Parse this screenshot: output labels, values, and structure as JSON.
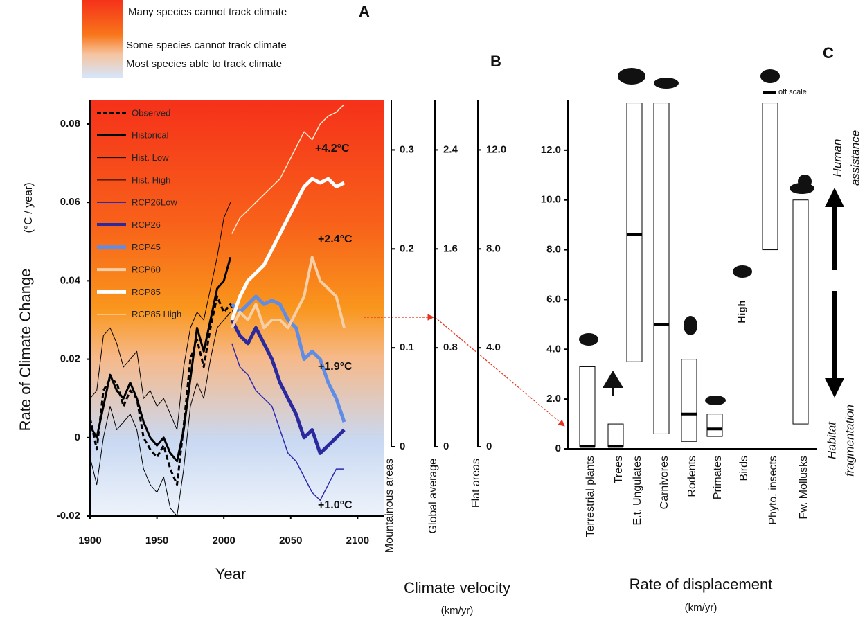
{
  "chart_data": [
    {
      "type": "line",
      "panel": "A",
      "y_label": "Rate of Climate Change",
      "y_unit": "(°C / year)",
      "x_label": "Year",
      "zones": [
        "Many species cannot track climate",
        "Some species cannot track climate",
        "Most species able to track climate"
      ],
      "xlim": [
        1900,
        2120
      ],
      "ylim": [
        -0.02,
        0.086
      ],
      "xticks": [
        1900,
        1950,
        2000,
        2050,
        2100
      ],
      "yticks": [
        -0.02,
        0,
        0.02,
        0.04,
        0.06,
        0.08
      ],
      "series": [
        {
          "name": "Observed",
          "color": "#000000",
          "width": 3,
          "dash": true,
          "x": [
            1900,
            1905,
            1910,
            1915,
            1920,
            1925,
            1930,
            1935,
            1940,
            1945,
            1950,
            1955,
            1960,
            1965,
            1970,
            1975,
            1980,
            1985,
            1990,
            1995,
            2000,
            2005,
            2010
          ],
          "values": [
            0.005,
            -0.003,
            0.012,
            0.015,
            0.014,
            0.008,
            0.012,
            0.01,
            0.0,
            -0.003,
            -0.005,
            -0.002,
            -0.008,
            -0.012,
            0.003,
            0.02,
            0.025,
            0.018,
            0.028,
            0.036,
            0.032,
            0.034,
            0.03
          ]
        },
        {
          "name": "Historical",
          "color": "#000000",
          "width": 3,
          "dash": false,
          "x": [
            1900,
            1905,
            1910,
            1915,
            1920,
            1925,
            1930,
            1935,
            1940,
            1945,
            1950,
            1955,
            1960,
            1965,
            1970,
            1975,
            1980,
            1985,
            1990,
            1995,
            2000,
            2005
          ],
          "values": [
            0.003,
            0.0,
            0.008,
            0.016,
            0.012,
            0.01,
            0.014,
            0.01,
            0.004,
            0.0,
            -0.002,
            0.0,
            -0.004,
            -0.006,
            0.002,
            0.015,
            0.028,
            0.022,
            0.03,
            0.038,
            0.04,
            0.046
          ]
        },
        {
          "name": "Hist. Low",
          "color": "#000000",
          "width": 1,
          "dash": false,
          "x": [
            1900,
            1905,
            1910,
            1915,
            1920,
            1925,
            1930,
            1935,
            1940,
            1945,
            1950,
            1955,
            1960,
            1965,
            1970,
            1975,
            1980,
            1985,
            1990,
            1995,
            2000,
            2005
          ],
          "values": [
            -0.005,
            -0.012,
            0.0,
            0.008,
            0.002,
            0.004,
            0.006,
            0.002,
            -0.008,
            -0.012,
            -0.014,
            -0.01,
            -0.018,
            -0.02,
            -0.008,
            0.008,
            0.014,
            0.01,
            0.02,
            0.028,
            0.03,
            0.032
          ]
        },
        {
          "name": "Hist. High",
          "color": "#000000",
          "width": 1,
          "dash": false,
          "x": [
            1900,
            1905,
            1910,
            1915,
            1920,
            1925,
            1930,
            1935,
            1940,
            1945,
            1950,
            1955,
            1960,
            1965,
            1970,
            1975,
            1980,
            1985,
            1990,
            1995,
            2000,
            2005
          ],
          "values": [
            0.01,
            0.012,
            0.026,
            0.028,
            0.024,
            0.018,
            0.02,
            0.022,
            0.01,
            0.012,
            0.008,
            0.01,
            0.006,
            0.002,
            0.018,
            0.028,
            0.032,
            0.03,
            0.038,
            0.046,
            0.056,
            0.06
          ]
        },
        {
          "name": "RCP26Low",
          "color": "#2b2bb0",
          "width": 1.5,
          "dash": false,
          "x": [
            2006,
            2012,
            2018,
            2024,
            2030,
            2036,
            2042,
            2048,
            2054,
            2060,
            2066,
            2072,
            2078,
            2084,
            2090
          ],
          "values": [
            0.024,
            0.018,
            0.016,
            0.012,
            0.01,
            0.008,
            0.002,
            -0.004,
            -0.006,
            -0.01,
            -0.014,
            -0.016,
            -0.012,
            -0.008,
            -0.008
          ]
        },
        {
          "name": "RCP26",
          "color": "#2a2a9e",
          "width": 5,
          "dash": false,
          "x": [
            2006,
            2012,
            2018,
            2024,
            2030,
            2036,
            2042,
            2048,
            2054,
            2060,
            2066,
            2072,
            2078,
            2084,
            2090
          ],
          "values": [
            0.03,
            0.026,
            0.024,
            0.028,
            0.024,
            0.02,
            0.014,
            0.01,
            0.006,
            0.0,
            0.002,
            -0.004,
            -0.002,
            0.0,
            0.002
          ]
        },
        {
          "name": "RCP45",
          "color": "#5f8de6",
          "width": 5,
          "dash": false,
          "x": [
            2006,
            2012,
            2018,
            2024,
            2030,
            2036,
            2042,
            2048,
            2054,
            2060,
            2066,
            2072,
            2078,
            2084,
            2090
          ],
          "values": [
            0.034,
            0.032,
            0.034,
            0.036,
            0.034,
            0.035,
            0.034,
            0.03,
            0.028,
            0.02,
            0.022,
            0.02,
            0.014,
            0.01,
            0.004
          ]
        },
        {
          "name": "RCP60",
          "color": "#f7cfa6",
          "width": 4,
          "dash": false,
          "x": [
            2006,
            2012,
            2018,
            2024,
            2030,
            2036,
            2042,
            2048,
            2054,
            2060,
            2066,
            2072,
            2078,
            2084,
            2090
          ],
          "values": [
            0.028,
            0.032,
            0.03,
            0.034,
            0.028,
            0.03,
            0.03,
            0.028,
            0.032,
            0.036,
            0.046,
            0.04,
            0.038,
            0.036,
            0.028
          ]
        },
        {
          "name": "RCP85",
          "color": "#ffffff",
          "width": 5,
          "dash": false,
          "x": [
            2006,
            2012,
            2018,
            2024,
            2030,
            2036,
            2042,
            2048,
            2054,
            2060,
            2066,
            2072,
            2078,
            2084,
            2090
          ],
          "values": [
            0.03,
            0.036,
            0.04,
            0.042,
            0.044,
            0.048,
            0.052,
            0.056,
            0.06,
            0.064,
            0.066,
            0.065,
            0.066,
            0.064,
            0.065
          ]
        },
        {
          "name": "RCP85 High",
          "color": "#ffe9cc",
          "width": 1.5,
          "dash": false,
          "x": [
            2006,
            2012,
            2018,
            2024,
            2030,
            2036,
            2042,
            2048,
            2054,
            2060,
            2066,
            2072,
            2078,
            2084,
            2090
          ],
          "values": [
            0.052,
            0.056,
            0.058,
            0.06,
            0.062,
            0.064,
            0.066,
            0.07,
            0.074,
            0.078,
            0.076,
            0.08,
            0.082,
            0.083,
            0.085
          ]
        }
      ],
      "annotations": [
        {
          "text": "+4.2°C",
          "color": "#ffffff"
        },
        {
          "text": "+2.4°C",
          "color": "#f7cfa6"
        },
        {
          "text": "+1.9°C",
          "color": "#5f8de6"
        },
        {
          "text": "+1.0°C",
          "color": "#2a2a9e"
        }
      ]
    },
    {
      "type": "axes",
      "panel": "B",
      "title": "Climate velocity",
      "unit": "(km/yr)",
      "axes": [
        {
          "label": "Mountainous areas",
          "ylim": [
            0,
            0.35
          ],
          "yticks": [
            0,
            0.1,
            0.2,
            0.3
          ]
        },
        {
          "label": "Global average",
          "ylim": [
            0,
            2.8
          ],
          "yticks": [
            0,
            0.8,
            1.6,
            2.4
          ]
        },
        {
          "label": "Flat areas",
          "ylim": [
            0,
            14
          ],
          "yticks": [
            0,
            {
              "value": 4,
              "label": "4.0"
            },
            {
              "value": 8,
              "label": "8.0"
            },
            {
              "value": 12,
              "label": "12.0"
            }
          ]
        }
      ]
    },
    {
      "type": "range",
      "panel": "C",
      "x_label": "Rate of displacement",
      "unit": "(km/yr)",
      "ylim": [
        0,
        14
      ],
      "yticks": [
        0,
        {
          "value": 2,
          "label": "2.0"
        },
        {
          "value": 4,
          "label": "4.0"
        },
        {
          "value": 6,
          "label": "6.0"
        },
        {
          "value": 8,
          "label": "8.0"
        },
        {
          "value": 10,
          "label": "10.0"
        },
        {
          "value": 12,
          "label": "12.0"
        }
      ],
      "categories": [
        "Terrestrial plants",
        "Trees",
        "E.t. Ungulates",
        "Carnivores",
        "Rodents",
        "Primates",
        "Birds",
        "Phyto. insects",
        "Fw. Mollusks"
      ],
      "low": [
        0.1,
        0.1,
        3.5,
        0.6,
        0.3,
        0.5,
        null,
        8.0,
        1.0
      ],
      "high": [
        3.3,
        1.0,
        13.9,
        13.9,
        3.6,
        1.4,
        null,
        13.9,
        10.0
      ],
      "median": [
        0.1,
        0.1,
        8.6,
        5.0,
        1.4,
        0.8,
        null,
        null,
        null
      ],
      "notes": [
        null,
        null,
        null,
        null,
        null,
        null,
        "High",
        "off scale",
        null
      ],
      "side_labels": [
        [
          "Human",
          "assistance"
        ],
        [
          "Habitat",
          "fragmentation"
        ]
      ]
    }
  ]
}
